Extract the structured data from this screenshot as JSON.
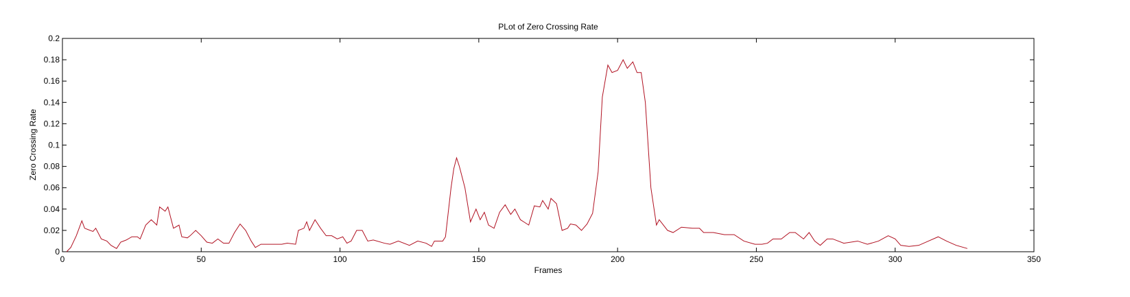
{
  "chart_data": {
    "type": "line",
    "title": "PLot of Zero Crossing Rate",
    "xlabel": "Frames",
    "ylabel": "Zero Crossing Rate",
    "x": [
      1.5,
      3,
      5,
      7,
      8,
      11,
      12,
      14,
      16,
      17.5,
      19.5,
      21,
      23,
      25,
      27,
      28,
      30,
      32,
      34,
      35,
      37,
      38,
      40,
      42,
      43,
      45,
      46,
      48,
      50,
      52,
      54,
      56,
      58,
      60,
      62,
      64,
      66,
      68,
      69.5,
      71.5,
      76,
      79,
      81,
      84,
      85,
      87,
      88,
      89,
      91,
      93,
      95,
      97,
      99,
      101,
      102.5,
      104,
      106,
      108,
      110,
      112,
      116,
      118,
      121,
      125,
      128,
      131,
      133,
      134,
      137,
      138,
      140,
      141,
      142,
      143,
      145,
      147,
      149,
      150.5,
      152,
      153.5,
      155.5,
      157.5,
      159.5,
      161.5,
      163,
      165,
      168,
      170,
      172,
      173,
      175,
      176,
      178,
      180,
      182,
      183,
      185,
      187,
      189,
      191,
      193,
      194.5,
      196.5,
      198,
      200,
      202,
      203.5,
      205.5,
      207,
      208.5,
      210,
      212,
      214,
      215,
      218,
      220,
      223,
      227,
      229.5,
      231,
      234.5,
      238.5,
      242,
      245.5,
      249.5,
      252,
      254,
      256,
      259,
      262,
      264,
      267,
      269,
      271,
      273,
      275.5,
      277.5,
      281.5,
      286.5,
      290,
      294,
      297.5,
      300,
      302,
      305,
      308.5,
      312,
      315.5,
      318.5,
      322,
      326
    ],
    "values": [
      0,
      0.004,
      0.015,
      0.029,
      0.022,
      0.019,
      0.022,
      0.012,
      0.01,
      0.006,
      0.003,
      0.009,
      0.011,
      0.014,
      0.014,
      0.012,
      0.025,
      0.03,
      0.025,
      0.042,
      0.038,
      0.042,
      0.022,
      0.025,
      0.014,
      0.013,
      0.015,
      0.02,
      0.015,
      0.009,
      0.008,
      0.012,
      0.008,
      0.008,
      0.018,
      0.026,
      0.02,
      0.01,
      0.004,
      0.007,
      0.007,
      0.007,
      0.008,
      0.007,
      0.02,
      0.022,
      0.028,
      0.02,
      0.03,
      0.022,
      0.015,
      0.015,
      0.012,
      0.014,
      0.008,
      0.01,
      0.02,
      0.02,
      0.01,
      0.011,
      0.008,
      0.007,
      0.01,
      0.006,
      0.01,
      0.008,
      0.005,
      0.01,
      0.01,
      0.014,
      0.06,
      0.078,
      0.088,
      0.08,
      0.06,
      0.028,
      0.04,
      0.03,
      0.037,
      0.025,
      0.022,
      0.037,
      0.044,
      0.035,
      0.04,
      0.03,
      0.025,
      0.043,
      0.042,
      0.048,
      0.04,
      0.05,
      0.045,
      0.02,
      0.022,
      0.026,
      0.025,
      0.02,
      0.026,
      0.036,
      0.075,
      0.145,
      0.175,
      0.168,
      0.17,
      0.18,
      0.172,
      0.178,
      0.168,
      0.168,
      0.14,
      0.06,
      0.025,
      0.03,
      0.02,
      0.018,
      0.023,
      0.022,
      0.022,
      0.018,
      0.018,
      0.016,
      0.016,
      0.01,
      0.007,
      0.007,
      0.008,
      0.012,
      0.012,
      0.018,
      0.018,
      0.012,
      0.018,
      0.01,
      0.006,
      0.012,
      0.012,
      0.008,
      0.01,
      0.007,
      0.01,
      0.015,
      0.012,
      0.006,
      0.005,
      0.006,
      0.01,
      0.014,
      0.01,
      0.006,
      0.003
    ],
    "color": "#b01020",
    "xlim": [
      0,
      350
    ],
    "xticks": [
      0,
      50,
      100,
      150,
      200,
      250,
      300,
      350
    ],
    "ylim": [
      0,
      0.2
    ],
    "yticks": [
      0,
      0.02,
      0.04,
      0.06,
      0.08,
      0.1,
      0.12,
      0.14,
      0.16,
      0.18,
      0.2
    ]
  }
}
